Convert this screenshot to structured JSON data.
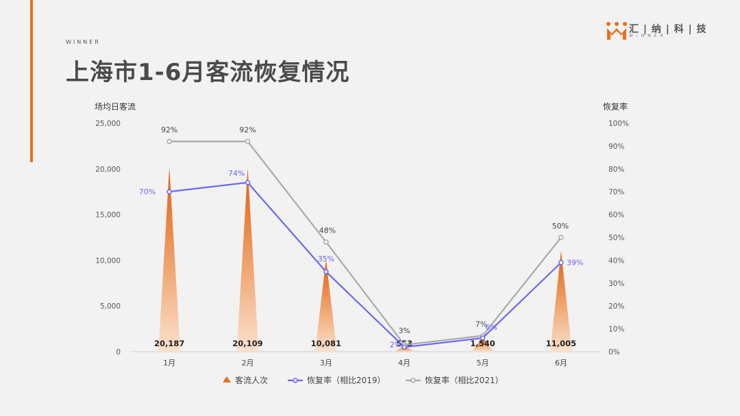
{
  "header": {
    "subtitle_en": "WINNER",
    "title": "上海市1-6月客流恢复情况"
  },
  "brand": {
    "name": "汇 | 纳 | 科 | 技",
    "tagline": "WINNER",
    "color": "#e8711a"
  },
  "chart_data": {
    "type": "bar",
    "categories": [
      "1月",
      "2月",
      "3月",
      "4月",
      "5月",
      "6月"
    ],
    "y_left": {
      "label": "场均日客流",
      "ticks": [
        "25,000",
        "20,000",
        "15,000",
        "10,000",
        "5,000",
        "0"
      ],
      "range": [
        0,
        25000
      ]
    },
    "y_right": {
      "label": "恢复率",
      "ticks": [
        "100%",
        "90%",
        "80%",
        "70%",
        "60%",
        "50%",
        "40%",
        "30%",
        "20%",
        "10%",
        "0%"
      ],
      "range": [
        0,
        1
      ]
    },
    "bars": {
      "name": "客流人次",
      "values": [
        20187,
        20109,
        10081,
        553,
        1540,
        11005
      ],
      "labels": [
        "20,187",
        "20,109",
        "10,081",
        "553",
        "1,540",
        "11,005"
      ],
      "color": "#e8711a"
    },
    "series": [
      {
        "name": "恢复率（相比2019）",
        "values": [
          0.7,
          0.74,
          0.35,
          0.02,
          0.06,
          0.39
        ],
        "labels": [
          "70%",
          "74%",
          "35%",
          "2%",
          "6%",
          "39%"
        ],
        "color": "#6b66f2"
      },
      {
        "name": "恢复率（相比2021）",
        "values": [
          0.92,
          0.92,
          0.48,
          0.03,
          0.07,
          0.5
        ],
        "labels": [
          "92%",
          "92%",
          "48%",
          "3%",
          "7%",
          "50%"
        ],
        "color": "#a9a9a9"
      }
    ],
    "legend_position": "bottom",
    "grid": false
  }
}
